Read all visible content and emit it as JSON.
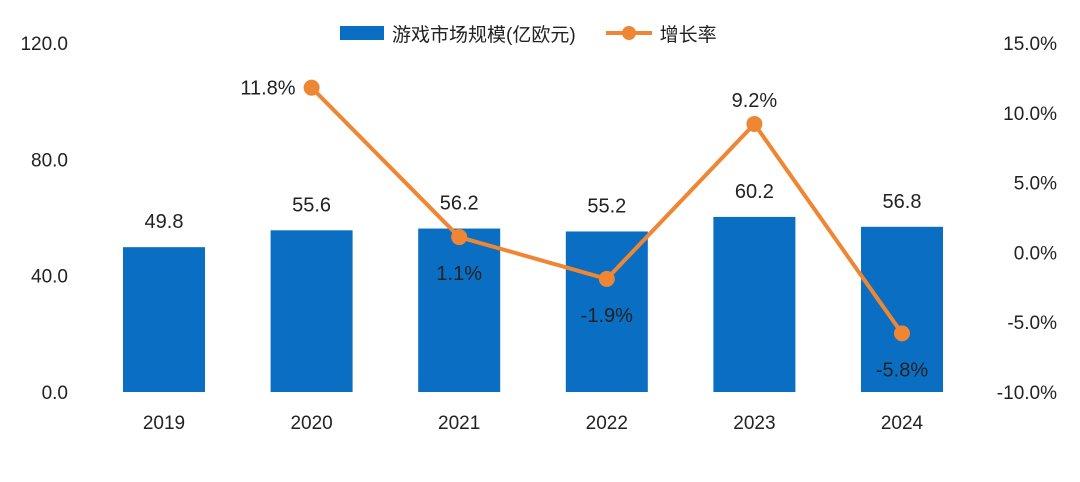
{
  "chart_data": {
    "type": "bar+line",
    "categories": [
      "2019",
      "2020",
      "2021",
      "2022",
      "2023",
      "2024"
    ],
    "series": [
      {
        "name": "游戏市场规模(亿欧元)",
        "kind": "bar",
        "axis": "left",
        "values": [
          49.8,
          55.6,
          56.2,
          55.2,
          60.2,
          56.8
        ],
        "labels": [
          "49.8",
          "55.6",
          "56.2",
          "55.2",
          "60.2",
          "56.8"
        ]
      },
      {
        "name": "增长率",
        "kind": "line",
        "axis": "right",
        "values": [
          null,
          11.8,
          1.1,
          -1.9,
          9.2,
          -5.8
        ],
        "labels": [
          "",
          "11.8%",
          "1.1%",
          "-1.9%",
          "9.2%",
          "-5.8%"
        ]
      }
    ],
    "y_left": {
      "range": [
        0,
        120
      ],
      "ticks": [
        "0.0",
        "40.0",
        "80.0",
        "120.0"
      ]
    },
    "y_right": {
      "range": [
        -10,
        15
      ],
      "ticks": [
        "-10.0%",
        "-5.0%",
        "0.0%",
        "5.0%",
        "10.0%",
        "15.0%"
      ]
    },
    "legend_position": "top-center",
    "grid": false
  },
  "colors": {
    "bar": "#0A6EC2",
    "line": "#EE8634",
    "text": "#222222"
  }
}
